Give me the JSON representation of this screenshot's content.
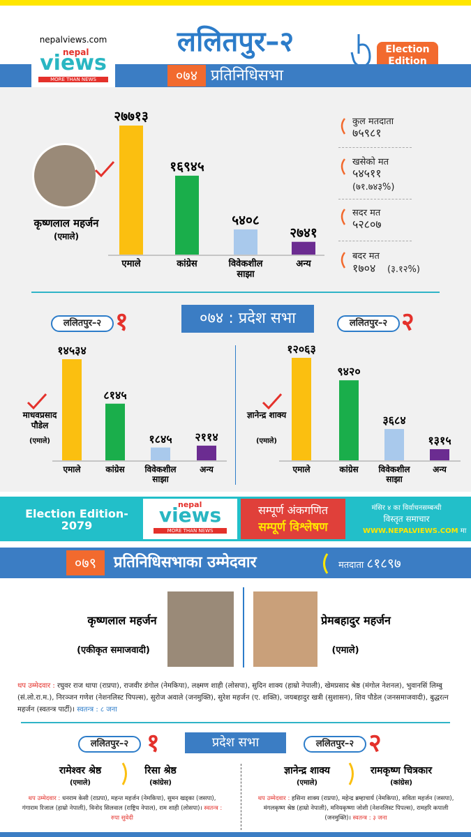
{
  "header": {
    "site": "nepalviews.com",
    "logo_top": "nepal",
    "logo_name": "views",
    "logo_tagline": "MORE THAN NEWS",
    "title": "ललितपुर–२",
    "badge": "Election Edition",
    "year": "०७४",
    "house": "प्रतिनिधिसभा"
  },
  "chart_data": [
    {
      "type": "bar",
      "categories": [
        "एमाले",
        "कांग्रेस",
        "विवेकशील साझा",
        "अन्य"
      ],
      "values": [
        27713,
        16945,
        5408,
        2741
      ],
      "value_labels": [
        "२७७१३",
        "१६९४५",
        "५४०८",
        "२७४१"
      ],
      "colors": [
        "#fbbf10",
        "#1aae4b",
        "#a9c9ec",
        "#6b2c91"
      ],
      "candidate": {
        "name": "कृष्णलाल महर्जन",
        "party": "(एमाले)"
      }
    },
    {
      "type": "bar",
      "categories": [
        "एमाले",
        "कांग्रेस",
        "विवेकशील साझा",
        "अन्य"
      ],
      "values": [
        14534,
        8145,
        1845,
        2114
      ],
      "value_labels": [
        "१४५३४",
        "८१४५",
        "१८४५",
        "२११४"
      ],
      "colors": [
        "#fbbf10",
        "#1aae4b",
        "#a9c9ec",
        "#6b2c91"
      ],
      "candidate": {
        "name": "माधवप्रसाद पौडेल",
        "party": "(एमाले)"
      }
    },
    {
      "type": "bar",
      "categories": [
        "एमाले",
        "कांग्रेस",
        "विवेकशील साझा",
        "अन्य"
      ],
      "values": [
        12063,
        9420,
        3684,
        1315
      ],
      "value_labels": [
        "१२०६३",
        "९४२०",
        "३६८४",
        "१३१५"
      ],
      "colors": [
        "#fbbf10",
        "#1aae4b",
        "#a9c9ec",
        "#6b2c91"
      ],
      "candidate": {
        "name": "ज्ञानेन्द्र शाक्य",
        "party": "(एमाले)"
      }
    }
  ],
  "stats": [
    {
      "label": "कुल मतदाता",
      "value": "७५९८१"
    },
    {
      "label": "खसेको मत",
      "value": "५४५११",
      "note": "(७१.७४३%)"
    },
    {
      "label": "सदर मत",
      "value": "५२८०७"
    },
    {
      "label": "बदर मत",
      "value": "१७०४",
      "note": "(३.१२%)"
    }
  ],
  "province_2074": {
    "title": "०७४ : प्रदेश सभा",
    "constituencies": [
      {
        "name": "ललितपुर–२",
        "number": "१"
      },
      {
        "name": "ललितपुर–२",
        "number": "२"
      }
    ]
  },
  "banner": {
    "edition": "Election Edition- 2079",
    "logo_top": "nepal",
    "logo_name": "views",
    "logo_tagline": "MORE THAN NEWS",
    "line1": "सम्पूर्ण अंकगणित",
    "line2": "सम्पूर्ण विश्लेषण",
    "note1": "मंसिर ४ का विर्वाचनसम्बन्धी",
    "note2": "विस्तृत समाचार",
    "url": "WWW.NEPALVIEWS.COM",
    "url_suffix": "मा"
  },
  "election_2079": {
    "year": "०७९",
    "title": "प्रतिनिधिसभाका उम्मेदवार",
    "voters_label": "मतदाता",
    "voters_value": "८१८९७",
    "candidates": [
      {
        "name": "कृष्णलाल महर्जन",
        "party": "(एकीकृत समाजवादी)"
      },
      {
        "name": "प्रेमबहादुर महर्जन",
        "party": "(एमाले)"
      }
    ],
    "others_label": "थप उम्मेदवार :",
    "others_text": "रघुवर राज थापा (राप्रपा), राजवीर डंगोल (नेमकिपा), लक्ष्मण शाही (लोसपा), सुदिन शाक्य (हाम्रो नेपाली), खेमप्रसाद श्रेष्ठ (मंगोल नेशनल), भुवानसिं लिम्बु (सं.लो.रा.म.), निरञ्जन गणेश (नेशनलिस्ट पिपल्स), सुरोज अवाले (जनमुक्ति), सुरेश महर्जन (ए. शक्ति), जयबहादुर खत्री (सुशासन), शिव पौडेल (जनसमाजवादी), बुद्धरत्न महर्जन (स्वतन्त्र पार्टी)।",
    "independent": "स्वतन्त्र : ८ जना"
  },
  "province_2079": {
    "title": "प्रदेश सभा",
    "constituencies": [
      {
        "name": "ललितपुर–२",
        "number": "१",
        "candidates": [
          {
            "name": "रामेश्वर श्रेष्ठ",
            "party": "(एमाले)"
          },
          {
            "name": "रिसा श्रेष्ठ",
            "party": "(कांग्रेस)"
          }
        ],
        "others_label": "थप उम्मेदवार :",
        "others_text": "धनराम केसी (राप्रपा), महन्त महर्जन (नेमकिपा), सुमन खड्का (जसपा), गंगाराम रिजाल (हाम्रो नेपाली), विनोद सिलवाल (राष्ट्रिय नेपाल), राम शाही (लोसपा)।",
        "independent": "स्वतन्त्र : रुपा सुवेदी"
      },
      {
        "name": "ललितपुर–२",
        "number": "२",
        "candidates": [
          {
            "name": "ज्ञानेन्द्र शाक्य",
            "party": "(एमाले)"
          },
          {
            "name": "रामकृष्ण चित्रकार",
            "party": "(कांग्रेस)"
          }
        ],
        "others_label": "थप उम्मेदवार :",
        "others_text": "हसिना शाक्य (राप्रपा), महेन्द्र ब्रम्हाचार्य (नेमकिपा), सविता महर्जन (जसपा), मंगलकृष्ण श्रेष्ठ (हाम्रो नेपाली), मनियकृष्णा जोशी (नेशनलिस्ट पिपल्स), रामहरि कपाली (जनमुक्ति)।",
        "independent": "स्वतन्त्र : ३ जना"
      }
    ]
  }
}
